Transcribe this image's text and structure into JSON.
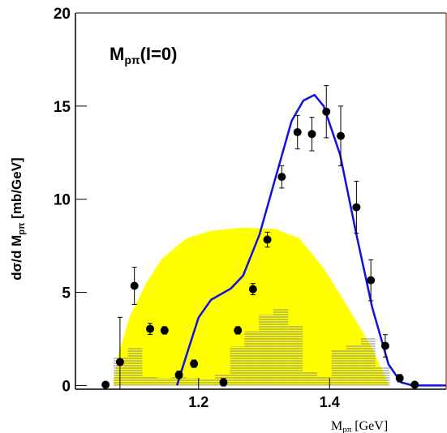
{
  "chart_data": {
    "type": "scatter",
    "annotation": {
      "main": "M",
      "sub": "pπ",
      "rest": "(I=0)"
    },
    "x_label": {
      "main": "M",
      "sub": "pπ",
      "rest": " [GeV]"
    },
    "y_label": {
      "main": "dσ/d M",
      "sub": "pπ",
      "rest": " [mb/GeV]"
    },
    "xlim": [
      1.012,
      1.578
    ],
    "ylim": [
      -0.2,
      20
    ],
    "xticks": [
      1.2,
      1.4
    ],
    "yticks": [
      0,
      5,
      10,
      15,
      20
    ],
    "phase_space": {
      "color": "#ffff00",
      "x": [
        1.07,
        1.077,
        1.095,
        1.12,
        1.144,
        1.181,
        1.219,
        1.268,
        1.317,
        1.354,
        1.391,
        1.428,
        1.465,
        1.491
      ],
      "values": [
        0,
        1.6,
        3.7,
        5.5,
        6.8,
        7.9,
        8.3,
        8.48,
        8.4,
        7.9,
        6.3,
        4.2,
        2.0,
        0
      ]
    },
    "histogram": {
      "color": "#a8a8a0",
      "bins": [
        1.07,
        1.092,
        1.114,
        1.137,
        1.159,
        1.181,
        1.203,
        1.225,
        1.248,
        1.27,
        1.292,
        1.314,
        1.337,
        1.359,
        1.381,
        1.403,
        1.425,
        1.448,
        1.47,
        1.492
      ],
      "counts": [
        1.5,
        2.0,
        0.5,
        0.4,
        0.5,
        0.4,
        0.3,
        0.6,
        2.1,
        2.9,
        3.8,
        4.1,
        3.2,
        0.7,
        0.5,
        1.9,
        2.2,
        2.6,
        1.0
      ]
    },
    "curve": {
      "color": "#1010e0",
      "x": [
        1.167,
        1.181,
        1.2,
        1.219,
        1.249,
        1.268,
        1.293,
        1.317,
        1.342,
        1.36,
        1.377,
        1.391,
        1.416,
        1.441,
        1.465,
        1.49,
        1.509,
        1.527,
        1.578
      ],
      "values": [
        0,
        1.57,
        3.65,
        4.6,
        5.2,
        5.9,
        8.1,
        11.1,
        14.2,
        15.3,
        15.6,
        15.0,
        12.4,
        8.1,
        4.2,
        1.13,
        0.17,
        0,
        0
      ]
    },
    "points": {
      "color": "#000000",
      "x": [
        1.058,
        1.08,
        1.102,
        1.126,
        1.148,
        1.17,
        1.193,
        1.238,
        1.26,
        1.283,
        1.305,
        1.327,
        1.351,
        1.373,
        1.395,
        1.417,
        1.441,
        1.463,
        1.485,
        1.507,
        1.53
      ],
      "values": [
        0.04,
        1.26,
        5.35,
        3.04,
        2.96,
        0.57,
        1.17,
        0.17,
        2.96,
        5.17,
        7.83,
        11.2,
        13.6,
        13.5,
        14.7,
        13.4,
        9.57,
        5.65,
        2.13,
        0.39,
        0.04
      ],
      "errors": [
        0.1,
        2.4,
        1.0,
        0.3,
        0.2,
        0.2,
        0.2,
        0.2,
        0.2,
        0.3,
        0.4,
        0.6,
        0.9,
        0.9,
        1.4,
        1.6,
        1.4,
        1.1,
        0.6,
        0.2,
        0.1
      ]
    }
  }
}
